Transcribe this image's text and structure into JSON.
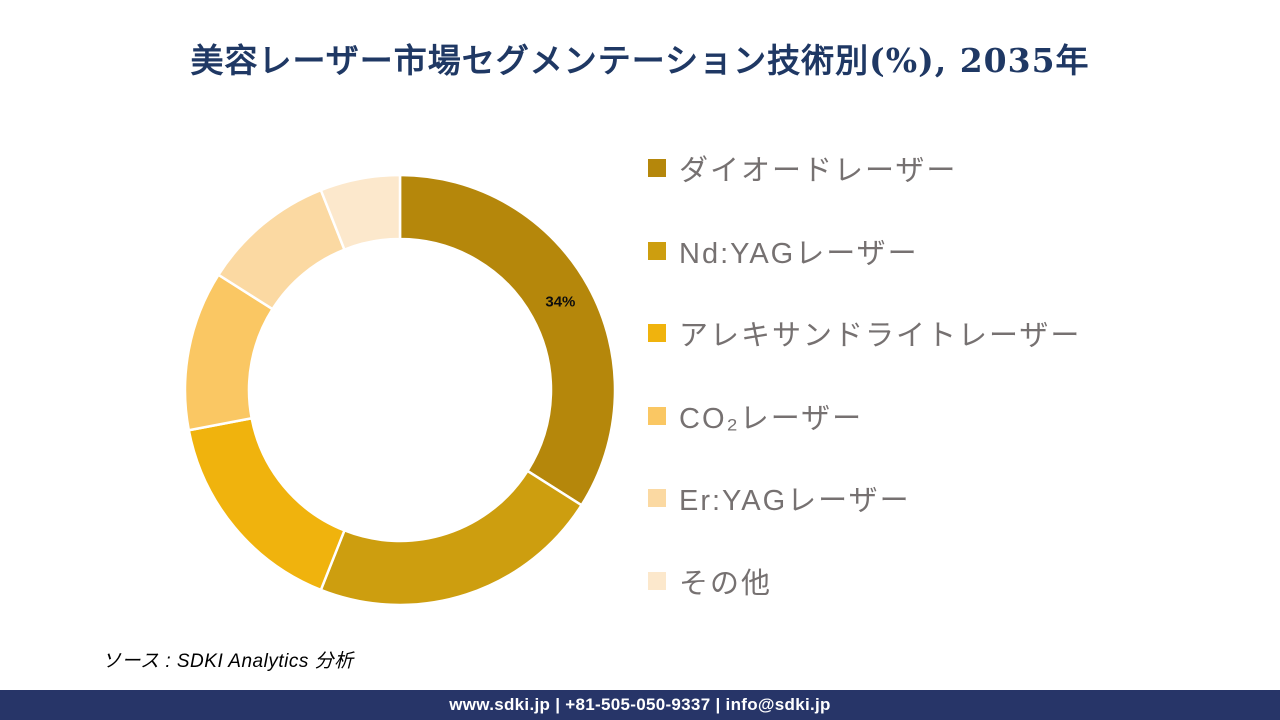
{
  "title": "美容レーザー市場セグメンテーション技術別(%), 2035年",
  "colors": {
    "title": "#1F3864",
    "legend_text": "#767171",
    "data_label": "#0D0D0D",
    "segment_gap": "#FFFFFF",
    "footer_background": "#273568",
    "footer_text": "#FFFFFF"
  },
  "chart_data": {
    "type": "pie",
    "subtype": "donut",
    "title": "美容レーザー市場セグメンテーション技術別(%), 2035年",
    "units": "%",
    "start_angle_deg": 0,
    "direction": "clockwise",
    "donut_hole_ratio": 0.7,
    "legend_position": "right",
    "segments": [
      {
        "label": "ダイオードレーザー",
        "value": 34,
        "color": "#B5870B",
        "data_label": "34%"
      },
      {
        "label": "Nd:YAGレーザー",
        "value": 22,
        "color": "#CD9E0F",
        "data_label": ""
      },
      {
        "label": "アレキサンドライトレーザー",
        "value": 16,
        "color": "#F0B30D",
        "data_label": ""
      },
      {
        "label": "CO₂レーザー",
        "value": 12,
        "color": "#FAC763",
        "data_label": ""
      },
      {
        "label": "Er:YAGレーザー",
        "value": 10,
        "color": "#FBD9A2",
        "data_label": ""
      },
      {
        "label": "その他",
        "value": 6,
        "color": "#FCE8CC",
        "data_label": ""
      }
    ]
  },
  "source_note": "ソース : SDKI Analytics  分析",
  "footer": {
    "text": "www.sdki.jp | +81-505-050-9337 | info@sdki.jp"
  }
}
